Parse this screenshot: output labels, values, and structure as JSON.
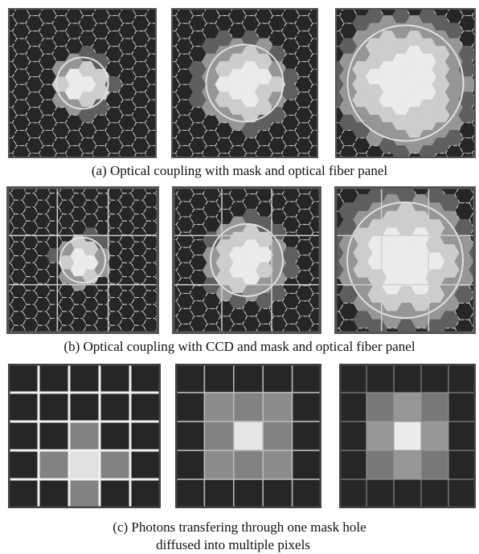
{
  "figure": {
    "captions": {
      "a": "(a) Optical coupling with mask and optical fiber panel",
      "b": "(b) Optical coupling with CCD and mask and optical fiber panel",
      "c_line1": "(c) Photons transfering through one mask hole",
      "c_line2": "diffused into multiple pixels"
    }
  }
}
